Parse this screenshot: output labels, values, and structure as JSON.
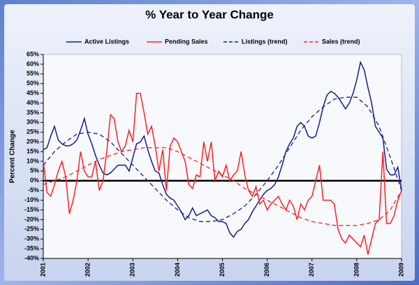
{
  "chart_data": {
    "type": "line",
    "title": "% Year to Year Change",
    "y_label": "Percent Change",
    "legend": "top",
    "zero_line": true,
    "x": [
      2001,
      2001.083,
      2001.167,
      2001.25,
      2001.333,
      2001.417,
      2001.5,
      2001.583,
      2001.667,
      2001.75,
      2001.833,
      2001.917,
      2002,
      2002.083,
      2002.167,
      2002.25,
      2002.333,
      2002.417,
      2002.5,
      2002.583,
      2002.667,
      2002.75,
      2002.833,
      2002.917,
      2003,
      2003.083,
      2003.167,
      2003.25,
      2003.333,
      2003.417,
      2003.5,
      2003.583,
      2003.667,
      2003.75,
      2003.833,
      2003.917,
      2004,
      2004.083,
      2004.167,
      2004.25,
      2004.333,
      2004.417,
      2004.5,
      2004.583,
      2004.667,
      2004.75,
      2004.833,
      2004.917,
      2005,
      2005.083,
      2005.167,
      2005.25,
      2005.333,
      2005.417,
      2005.5,
      2005.583,
      2005.667,
      2005.75,
      2005.833,
      2005.917,
      2006,
      2006.083,
      2006.167,
      2006.25,
      2006.333,
      2006.417,
      2006.5,
      2006.583,
      2006.667,
      2006.75,
      2006.833,
      2006.917,
      2007,
      2007.083,
      2007.167,
      2007.25,
      2007.333,
      2007.417,
      2007.5,
      2007.583,
      2007.667,
      2007.75,
      2007.833,
      2007.917,
      2008,
      2008.083,
      2008.167,
      2008.25,
      2008.333,
      2008.417,
      2008.5,
      2008.583,
      2008.667,
      2008.75,
      2008.833,
      2008.917,
      2009
    ],
    "series": [
      {
        "name": "Active Listings",
        "color": "#1a1a8c",
        "style": "solid",
        "values": [
          16,
          17,
          23,
          28,
          21,
          19,
          18,
          18,
          19,
          21,
          26,
          32,
          24,
          19,
          13,
          8,
          4,
          3,
          4,
          6,
          8,
          8,
          8,
          5,
          12,
          19,
          20,
          23,
          16,
          10,
          5,
          4,
          -2,
          -7,
          -9,
          -10,
          -13,
          -16,
          -20,
          -18,
          -14,
          -18,
          -17,
          -16,
          -15,
          -18,
          -19,
          -21,
          -21,
          -22,
          -27,
          -29,
          -26,
          -25,
          -22,
          -20,
          -16,
          -13,
          -10,
          -7,
          -5,
          -4,
          -2,
          2,
          8,
          15,
          19,
          22,
          28,
          30,
          28,
          23,
          22,
          23,
          30,
          38,
          44,
          46,
          45,
          43,
          40,
          37,
          40,
          45,
          52,
          61,
          57,
          48,
          40,
          28,
          25,
          22,
          6,
          3,
          3,
          7,
          -5
        ]
      },
      {
        "name": "Pending Sales",
        "color": "#ff2020",
        "style": "solid",
        "values": [
          10,
          -6,
          -8,
          -2,
          5,
          10,
          2,
          -17,
          -10,
          0,
          15,
          5,
          2,
          2,
          10,
          -5,
          0,
          15,
          34,
          32,
          20,
          15,
          18,
          26,
          20,
          45,
          45,
          35,
          24,
          28,
          18,
          5,
          16,
          -5,
          18,
          22,
          20,
          15,
          10,
          -2,
          -4,
          3,
          2,
          20,
          10,
          20,
          0,
          5,
          2,
          8,
          0,
          3,
          5,
          15,
          3,
          -5,
          -8,
          -3,
          -12,
          -10,
          -15,
          -12,
          -10,
          -8,
          -12,
          -15,
          -10,
          -13,
          -20,
          -12,
          -15,
          -10,
          -8,
          0,
          8,
          -10,
          -10,
          -10,
          -12,
          -25,
          -30,
          -32,
          -28,
          -30,
          -32,
          -34,
          -28,
          -38,
          -30,
          -22,
          -20,
          15,
          -22,
          -22,
          -18,
          -10,
          -5
        ]
      },
      {
        "name": "Listings (trend)",
        "color": "#1a1a8c",
        "style": "dashed",
        "x": [
          2001,
          2001.25,
          2001.5,
          2001.75,
          2002,
          2002.25,
          2002.5,
          2002.75,
          2003,
          2003.25,
          2003.5,
          2003.75,
          2004,
          2004.25,
          2004.5,
          2004.75,
          2005,
          2005.25,
          2005.5,
          2005.75,
          2006,
          2006.25,
          2006.5,
          2006.75,
          2007,
          2007.25,
          2007.5,
          2007.75,
          2008,
          2008.25,
          2008.5,
          2008.75,
          2009
        ],
        "values": [
          8,
          15,
          20,
          24,
          25,
          24,
          20,
          14,
          8,
          2,
          -4,
          -10,
          -15,
          -19,
          -21,
          -21,
          -20,
          -17,
          -13,
          -7,
          0,
          8,
          17,
          26,
          33,
          38,
          42,
          43,
          43,
          38,
          28,
          12,
          -5
        ]
      },
      {
        "name": "Sales (trend)",
        "color": "#ff2020",
        "style": "dashed",
        "x": [
          2001,
          2001.25,
          2001.5,
          2001.75,
          2002,
          2002.25,
          2002.5,
          2002.75,
          2003,
          2003.25,
          2003.5,
          2003.75,
          2004,
          2004.25,
          2004.5,
          2004.75,
          2005,
          2005.25,
          2005.5,
          2005.75,
          2006,
          2006.25,
          2006.5,
          2006.75,
          2007,
          2007.25,
          2007.5,
          2007.75,
          2008,
          2008.25,
          2008.5,
          2008.75,
          2009
        ],
        "values": [
          -2,
          0,
          2,
          5,
          8,
          11,
          13,
          15,
          16,
          17,
          17,
          17,
          15,
          12,
          9,
          6,
          3,
          0,
          -4,
          -7,
          -10,
          -13,
          -16,
          -19,
          -21,
          -22,
          -23,
          -23,
          -23,
          -22,
          -20,
          -15,
          -5
        ]
      }
    ],
    "xlim": [
      2001,
      2009
    ],
    "xticks": [
      2001,
      2002,
      2003,
      2004,
      2005,
      2006,
      2007,
      2008,
      2009
    ],
    "ylim": [
      -40,
      65
    ],
    "yticks": [
      {
        "value": -40,
        "label": "-40%"
      },
      {
        "value": -35,
        "label": "-35%"
      },
      {
        "value": -30,
        "label": "-30%"
      },
      {
        "value": -25,
        "label": "-25%"
      },
      {
        "value": -20,
        "label": "-20%"
      },
      {
        "value": -15,
        "label": "-15%"
      },
      {
        "value": -10,
        "label": "-10%"
      },
      {
        "value": -5,
        "label": "-5%"
      },
      {
        "value": 0,
        "label": "0%"
      },
      {
        "value": 5,
        "label": "5%"
      },
      {
        "value": 10,
        "label": "10%"
      },
      {
        "value": 15,
        "label": "15%"
      },
      {
        "value": 20,
        "label": "20%"
      },
      {
        "value": 25,
        "label": "25%"
      },
      {
        "value": 30,
        "label": "30%"
      },
      {
        "value": 35,
        "label": "35%"
      },
      {
        "value": 40,
        "label": "40%"
      },
      {
        "value": 45,
        "label": "45%"
      },
      {
        "value": 50,
        "label": "50%"
      },
      {
        "value": 55,
        "label": "55%"
      },
      {
        "value": 60,
        "label": "60%"
      },
      {
        "value": 65,
        "label": "65%"
      }
    ]
  }
}
